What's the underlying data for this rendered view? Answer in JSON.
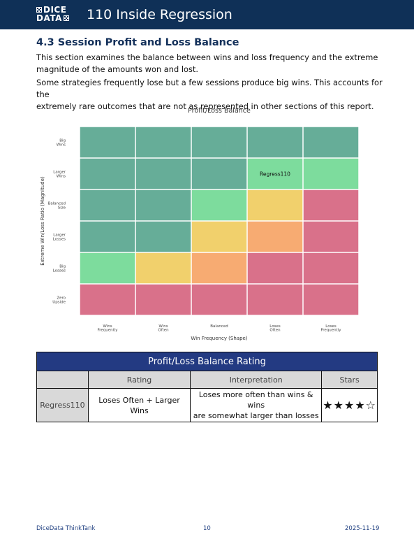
{
  "header": {
    "logo_line1": "DICE",
    "logo_line2": "DATA",
    "title": "110 Inside Regression"
  },
  "section": {
    "title": "4.3 Session Profit and Loss Balance",
    "para1_line1": "This section examines the balance between wins and loss frequency and the extreme",
    "para1_line2": "magnitude of the amounts won and lost.",
    "para2_line1": "Some strategies frequently lose but a few sessions produce big wins. This accounts for the",
    "para2_line2": "extremely rare outcomes that are not as represented in other sections of this report."
  },
  "chart_data": {
    "type": "heatmap",
    "title": "Profit/Loss Balance",
    "xlabel": "Win Frequency (Shape)",
    "ylabel": "Extreme Win/Loss Ratio (Magnitude)",
    "columns": [
      [
        "Wins",
        "Frequently"
      ],
      [
        "Wins",
        "Often"
      ],
      [
        "Balanced"
      ],
      [
        "Loses",
        "Often"
      ],
      [
        "Loses",
        "Frequently"
      ]
    ],
    "rows": [
      [
        "Big",
        "Wins"
      ],
      [
        "Larger",
        "Wins"
      ],
      [
        "Balanced",
        "Size"
      ],
      [
        "Larger",
        "Losses"
      ],
      [
        "Big",
        "Losses"
      ],
      [
        "Zero",
        "Upside"
      ]
    ],
    "cells": [
      [
        "teal",
        "teal",
        "teal",
        "teal",
        "teal"
      ],
      [
        "teal",
        "teal",
        "teal",
        "green",
        "green"
      ],
      [
        "teal",
        "teal",
        "green",
        "yellow",
        "red"
      ],
      [
        "teal",
        "teal",
        "yellow",
        "orange",
        "red"
      ],
      [
        "green",
        "yellow",
        "orange",
        "red",
        "red"
      ],
      [
        "red",
        "red",
        "red",
        "red",
        "red"
      ]
    ],
    "colors": {
      "teal": "#66ad98",
      "green": "#7ddc9d",
      "yellow": "#f1d06c",
      "orange": "#f7ab72",
      "red": "#d9718a"
    },
    "marker": {
      "label": "Regress110",
      "row": 1,
      "col": 3
    },
    "grid": false
  },
  "table": {
    "title": "Profit/Loss Balance Rating",
    "headers": [
      "",
      "Rating",
      "Interpretation",
      "Stars"
    ],
    "row": {
      "label": "Regress110",
      "rating": "Loses Often + Larger Wins",
      "interp_line1": "Loses more often than wins & wins",
      "interp_line2": "are somewhat larger than losses",
      "stars": "★★★★☆"
    }
  },
  "footer": {
    "left": "DiceData ThinkTank",
    "center": "10",
    "right": "2025-11-19"
  }
}
